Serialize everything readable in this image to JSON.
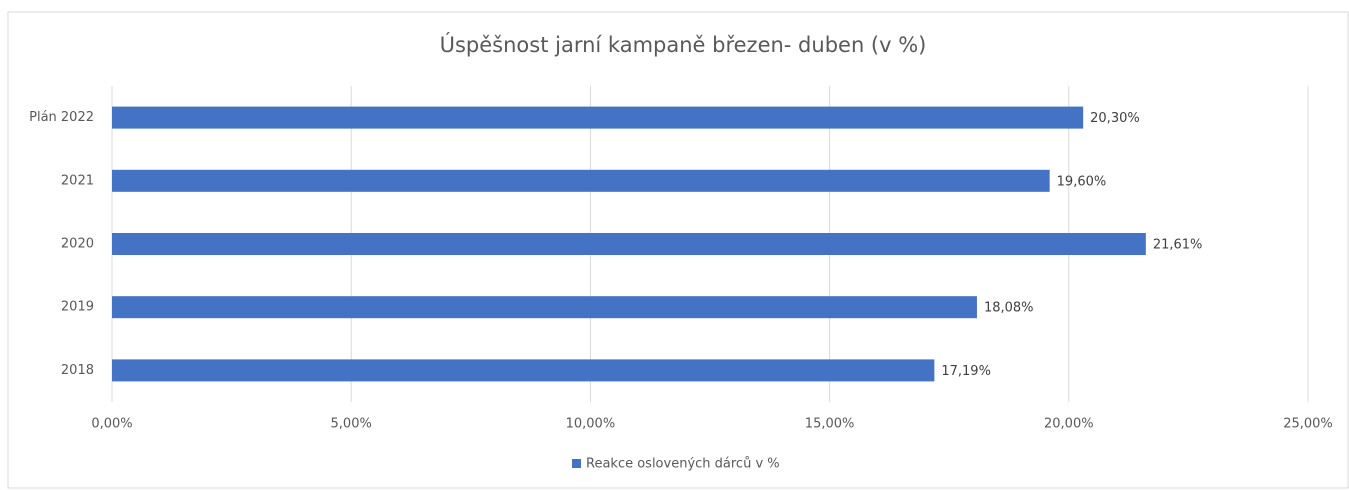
{
  "chart_data": {
    "type": "bar",
    "orientation": "horizontal",
    "title": "Úspěšnost jarní kampaně březen- duben (v %)",
    "categories": [
      "Plán 2022",
      "2021",
      "2020",
      "2019",
      "2018"
    ],
    "series": [
      {
        "name": "Reakce oslovených dárců v %",
        "color": "#4472c4",
        "values": [
          20.3,
          19.6,
          21.61,
          18.08,
          17.19
        ],
        "value_labels": [
          "20,30%",
          "19,60%",
          "21,61%",
          "18,08%",
          "17,19%"
        ]
      }
    ],
    "xlim": [
      0,
      25
    ],
    "xticks": [
      {
        "value": 0,
        "label": "0,00%"
      },
      {
        "value": 5,
        "label": "5,00%"
      },
      {
        "value": 10,
        "label": "10,00%"
      },
      {
        "value": 15,
        "label": "15,00%"
      },
      {
        "value": 20,
        "label": "20,00%"
      },
      {
        "value": 25,
        "label": "25,00%"
      }
    ],
    "grid": true,
    "legend": "bottom"
  }
}
